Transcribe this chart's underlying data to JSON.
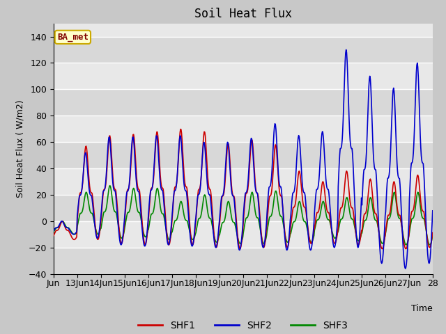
{
  "title": "Soil Heat Flux",
  "ylabel": "Soil Heat Flux ( W/m2)",
  "xlabel": "Time",
  "xlim_start": 12,
  "xlim_end": 28,
  "ylim": [
    -40,
    150
  ],
  "yticks": [
    -40,
    -20,
    0,
    20,
    40,
    60,
    80,
    100,
    120,
    140
  ],
  "xtick_positions": [
    12,
    13,
    14,
    15,
    16,
    17,
    18,
    19,
    20,
    21,
    22,
    23,
    24,
    25,
    26,
    27,
    28
  ],
  "xtick_labels": [
    "Jun",
    "13Jun",
    "14Jun",
    "15Jun",
    "16Jun",
    "17Jun",
    "18Jun",
    "19Jun",
    "20Jun",
    "21Jun",
    "22Jun",
    "23Jun",
    "24Jun",
    "25Jun",
    "26Jun",
    "27Jun",
    "28"
  ],
  "shf1_color": "#cc0000",
  "shf2_color": "#0000cc",
  "shf3_color": "#008800",
  "legend_label1": "SHF1",
  "legend_label2": "SHF2",
  "legend_label3": "SHF3",
  "annotation_text": "BA_met",
  "annotation_bg": "#ffffcc",
  "annotation_border": "#ccaa00",
  "fig_bg": "#c8c8c8",
  "plot_bg": "#e8e8e8",
  "band_light": "#e0e0e0",
  "band_dark": "#d0d0d0",
  "linewidth": 1.2,
  "shf1_peaks": [
    0,
    57,
    65,
    66,
    68,
    70,
    68,
    59,
    62,
    58,
    38,
    30,
    38,
    32,
    30,
    35
  ],
  "shf1_troughs": [
    -14,
    -14,
    -17,
    -18,
    -18,
    -18,
    -20,
    -21,
    -20,
    -20,
    -17,
    -17,
    -18,
    -21,
    -21,
    -20
  ],
  "shf2_peaks": [
    0,
    52,
    64,
    64,
    65,
    65,
    60,
    60,
    63,
    74,
    65,
    68,
    130,
    110,
    101,
    120
  ],
  "shf2_troughs": [
    -10,
    -13,
    -18,
    -19,
    -18,
    -19,
    -20,
    -22,
    -20,
    -22,
    -22,
    -20,
    -20,
    -32,
    -36,
    -32
  ],
  "shf3_peaks": [
    0,
    22,
    27,
    25,
    25,
    15,
    20,
    15,
    22,
    23,
    15,
    15,
    18,
    18,
    22,
    22
  ],
  "shf3_troughs": [
    -10,
    -10,
    -13,
    -12,
    -14,
    -14,
    -16,
    -17,
    -17,
    -16,
    -16,
    -13,
    -15,
    -17,
    -18,
    -18
  ]
}
